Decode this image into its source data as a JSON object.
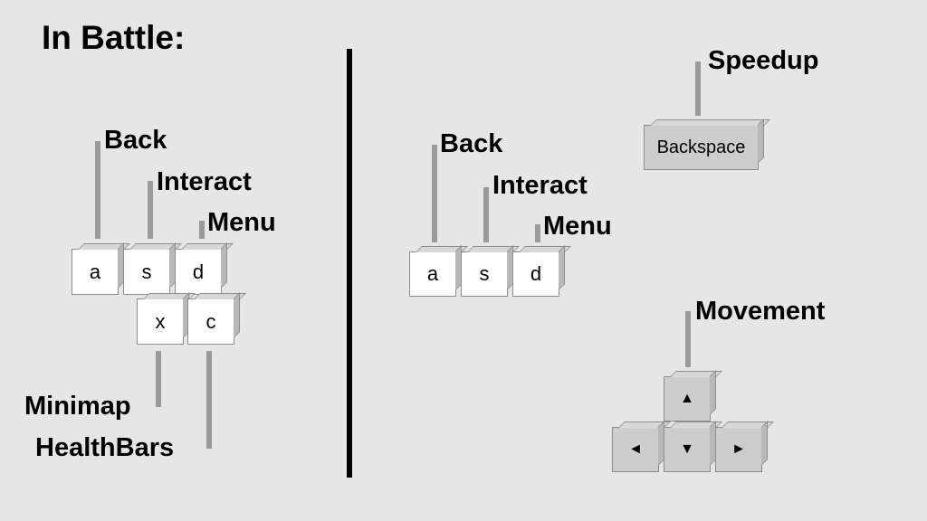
{
  "title": "In Battle:",
  "left": {
    "keys": [
      "a",
      "s",
      "d",
      "x",
      "c"
    ],
    "labels": {
      "back": "Back",
      "interact": "Interact",
      "menu": "Menu",
      "minimap": "Minimap",
      "healthbars": "HealthBars"
    }
  },
  "right": {
    "keys": [
      "a",
      "s",
      "d"
    ],
    "labels": {
      "back": "Back",
      "interact": "Interact",
      "menu": "Menu",
      "speedup": "Speedup",
      "movement": "Movement"
    },
    "backspace_key": "Backspace",
    "arrows": {
      "up": "▲",
      "left": "◄",
      "down": "▼",
      "right": "►"
    }
  }
}
